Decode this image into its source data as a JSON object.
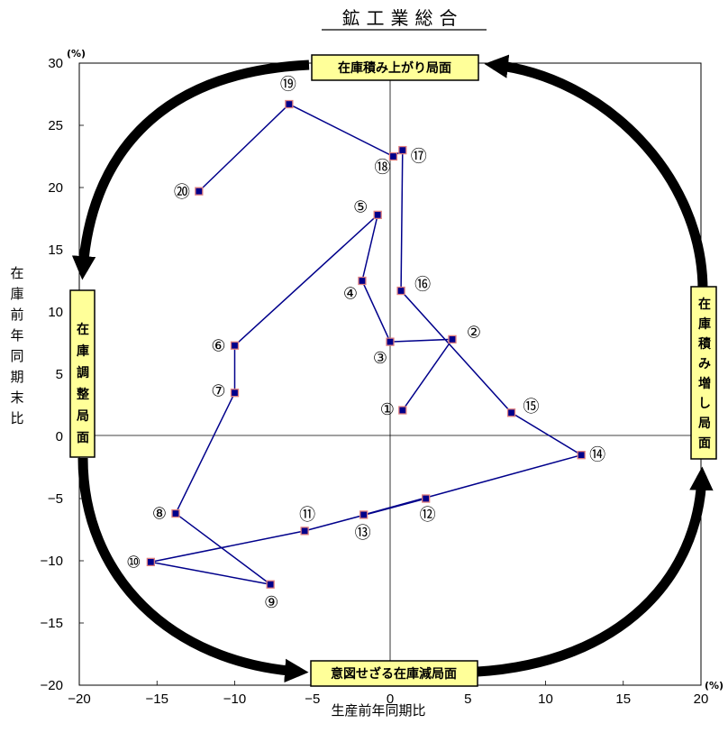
{
  "chart_data": {
    "type": "line",
    "title": "鉱工業総合",
    "xlabel": "生産前年同期比",
    "ylabel": "在庫前年同期末比",
    "x_unit": "(%)",
    "y_unit": "(%)",
    "xlim": [
      -20,
      20
    ],
    "ylim": [
      -20,
      30
    ],
    "xticks": [
      "−20",
      "−15",
      "−10",
      "−5",
      "0",
      "5",
      "10",
      "15",
      "20"
    ],
    "yticks": [
      "−20",
      "−15",
      "−10",
      "−5",
      "0",
      "5",
      "10",
      "15",
      "20",
      "25",
      "30"
    ],
    "grid": false,
    "series": [
      {
        "color": "#00008B",
        "points": [
          {
            "label": "①",
            "x": 0.8,
            "y": 2.1
          },
          {
            "label": "②",
            "x": 4.0,
            "y": 7.8
          },
          {
            "label": "③",
            "x": 0.0,
            "y": 7.6
          },
          {
            "label": "④",
            "x": -1.8,
            "y": 12.5
          },
          {
            "label": "⑤",
            "x": -0.8,
            "y": 17.8
          },
          {
            "label": "⑥",
            "x": -10.0,
            "y": 7.3
          },
          {
            "label": "⑦",
            "x": -10.0,
            "y": 3.5
          },
          {
            "label": "⑧",
            "x": -13.8,
            "y": -6.2
          },
          {
            "label": "⑨",
            "x": -7.7,
            "y": -11.9
          },
          {
            "label": "⑩",
            "x": -15.4,
            "y": -10.1
          },
          {
            "label": "⑪",
            "x": -5.5,
            "y": -7.6
          },
          {
            "label": "⑫",
            "x": 2.3,
            "y": -5.0
          },
          {
            "label": "⑬",
            "x": -1.7,
            "y": -6.3
          },
          {
            "label": "⑭",
            "x": 12.3,
            "y": -1.5
          },
          {
            "label": "⑮",
            "x": 7.8,
            "y": 1.9
          },
          {
            "label": "⑯",
            "x": 0.7,
            "y": 11.7
          },
          {
            "label": "⑰",
            "x": 0.8,
            "y": 23.0
          },
          {
            "label": "⑱",
            "x": 0.2,
            "y": 22.5
          },
          {
            "label": "⑲",
            "x": -6.5,
            "y": 26.7
          },
          {
            "label": "⑳",
            "x": -12.3,
            "y": 19.7
          }
        ]
      }
    ],
    "phases": {
      "top": "在庫積み上がり局面",
      "right": "在庫積み増し局面",
      "bottom": "意図せざる在庫減局面",
      "left": "在庫調整局面"
    }
  }
}
